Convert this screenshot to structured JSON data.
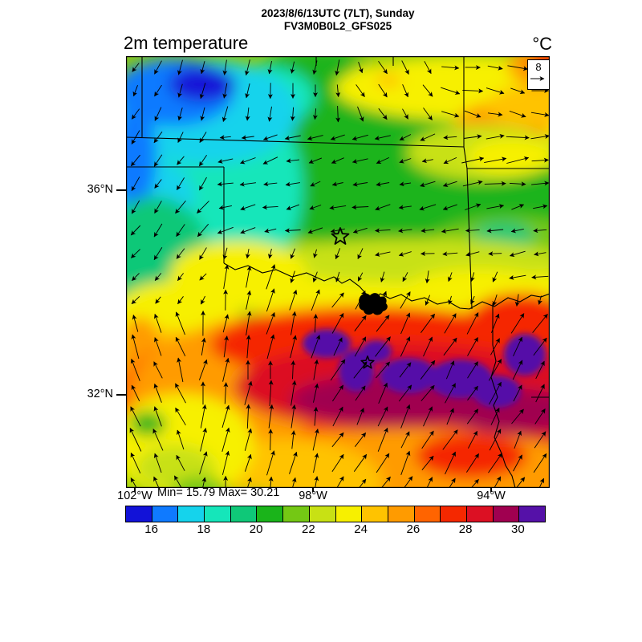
{
  "header": {
    "title_line1": "2023/8/6/13UTC (7LT), Sunday",
    "title_line2": "FV3M0B0L2_GFS025",
    "field_label": "2m temperature",
    "units_label": "°C"
  },
  "map": {
    "lat_tick_labels": [
      "36°N",
      "32°N"
    ],
    "lon_tick_labels": [
      "102°W",
      "98°W",
      "94°W"
    ],
    "stats_label": "Min= 15.79 Max= 30.21",
    "wind_reference_value": "8"
  },
  "colorbar": {
    "tick_labels": [
      "16",
      "18",
      "20",
      "22",
      "24",
      "26",
      "28",
      "30"
    ],
    "segment_colors": [
      "#1212d8",
      "#0f7aff",
      "#15d3ec",
      "#15e6ba",
      "#0fc878",
      "#1ab41a",
      "#74c814",
      "#c8e114",
      "#f7f000",
      "#ffc300",
      "#ff9b00",
      "#ff6400",
      "#f52800",
      "#dc1023",
      "#a00050",
      "#5511a8"
    ]
  },
  "chart_data": {
    "type": "heatmap",
    "title": "2023/8/6/13UTC (7LT), Sunday",
    "model_run": "FV3M0B0L2_GFS025",
    "variable": "2m temperature",
    "units": "°C",
    "stat_min": 15.79,
    "stat_max": 30.21,
    "color_scale": {
      "labeled_levels_c": [
        16,
        18,
        20,
        22,
        24,
        26,
        28,
        30
      ],
      "segment_step_c": 1,
      "segment_colors": [
        "#1212d8",
        "#0f7aff",
        "#15d3ec",
        "#15e6ba",
        "#0fc878",
        "#1ab41a",
        "#74c814",
        "#c8e114",
        "#f7f000",
        "#ffc300",
        "#ff9b00",
        "#ff6400",
        "#f52800",
        "#dc1023",
        "#a00050",
        "#5511a8"
      ]
    },
    "axes": {
      "lat_ticks_deg_n": [
        36,
        32
      ],
      "lon_ticks_deg_w": [
        102,
        98,
        94
      ],
      "grid": false
    },
    "overlays": {
      "wind_vectors": true,
      "wind_reference_value": 8,
      "state_boundaries": true,
      "star_markers": 2
    },
    "legend_position": "bottom"
  }
}
